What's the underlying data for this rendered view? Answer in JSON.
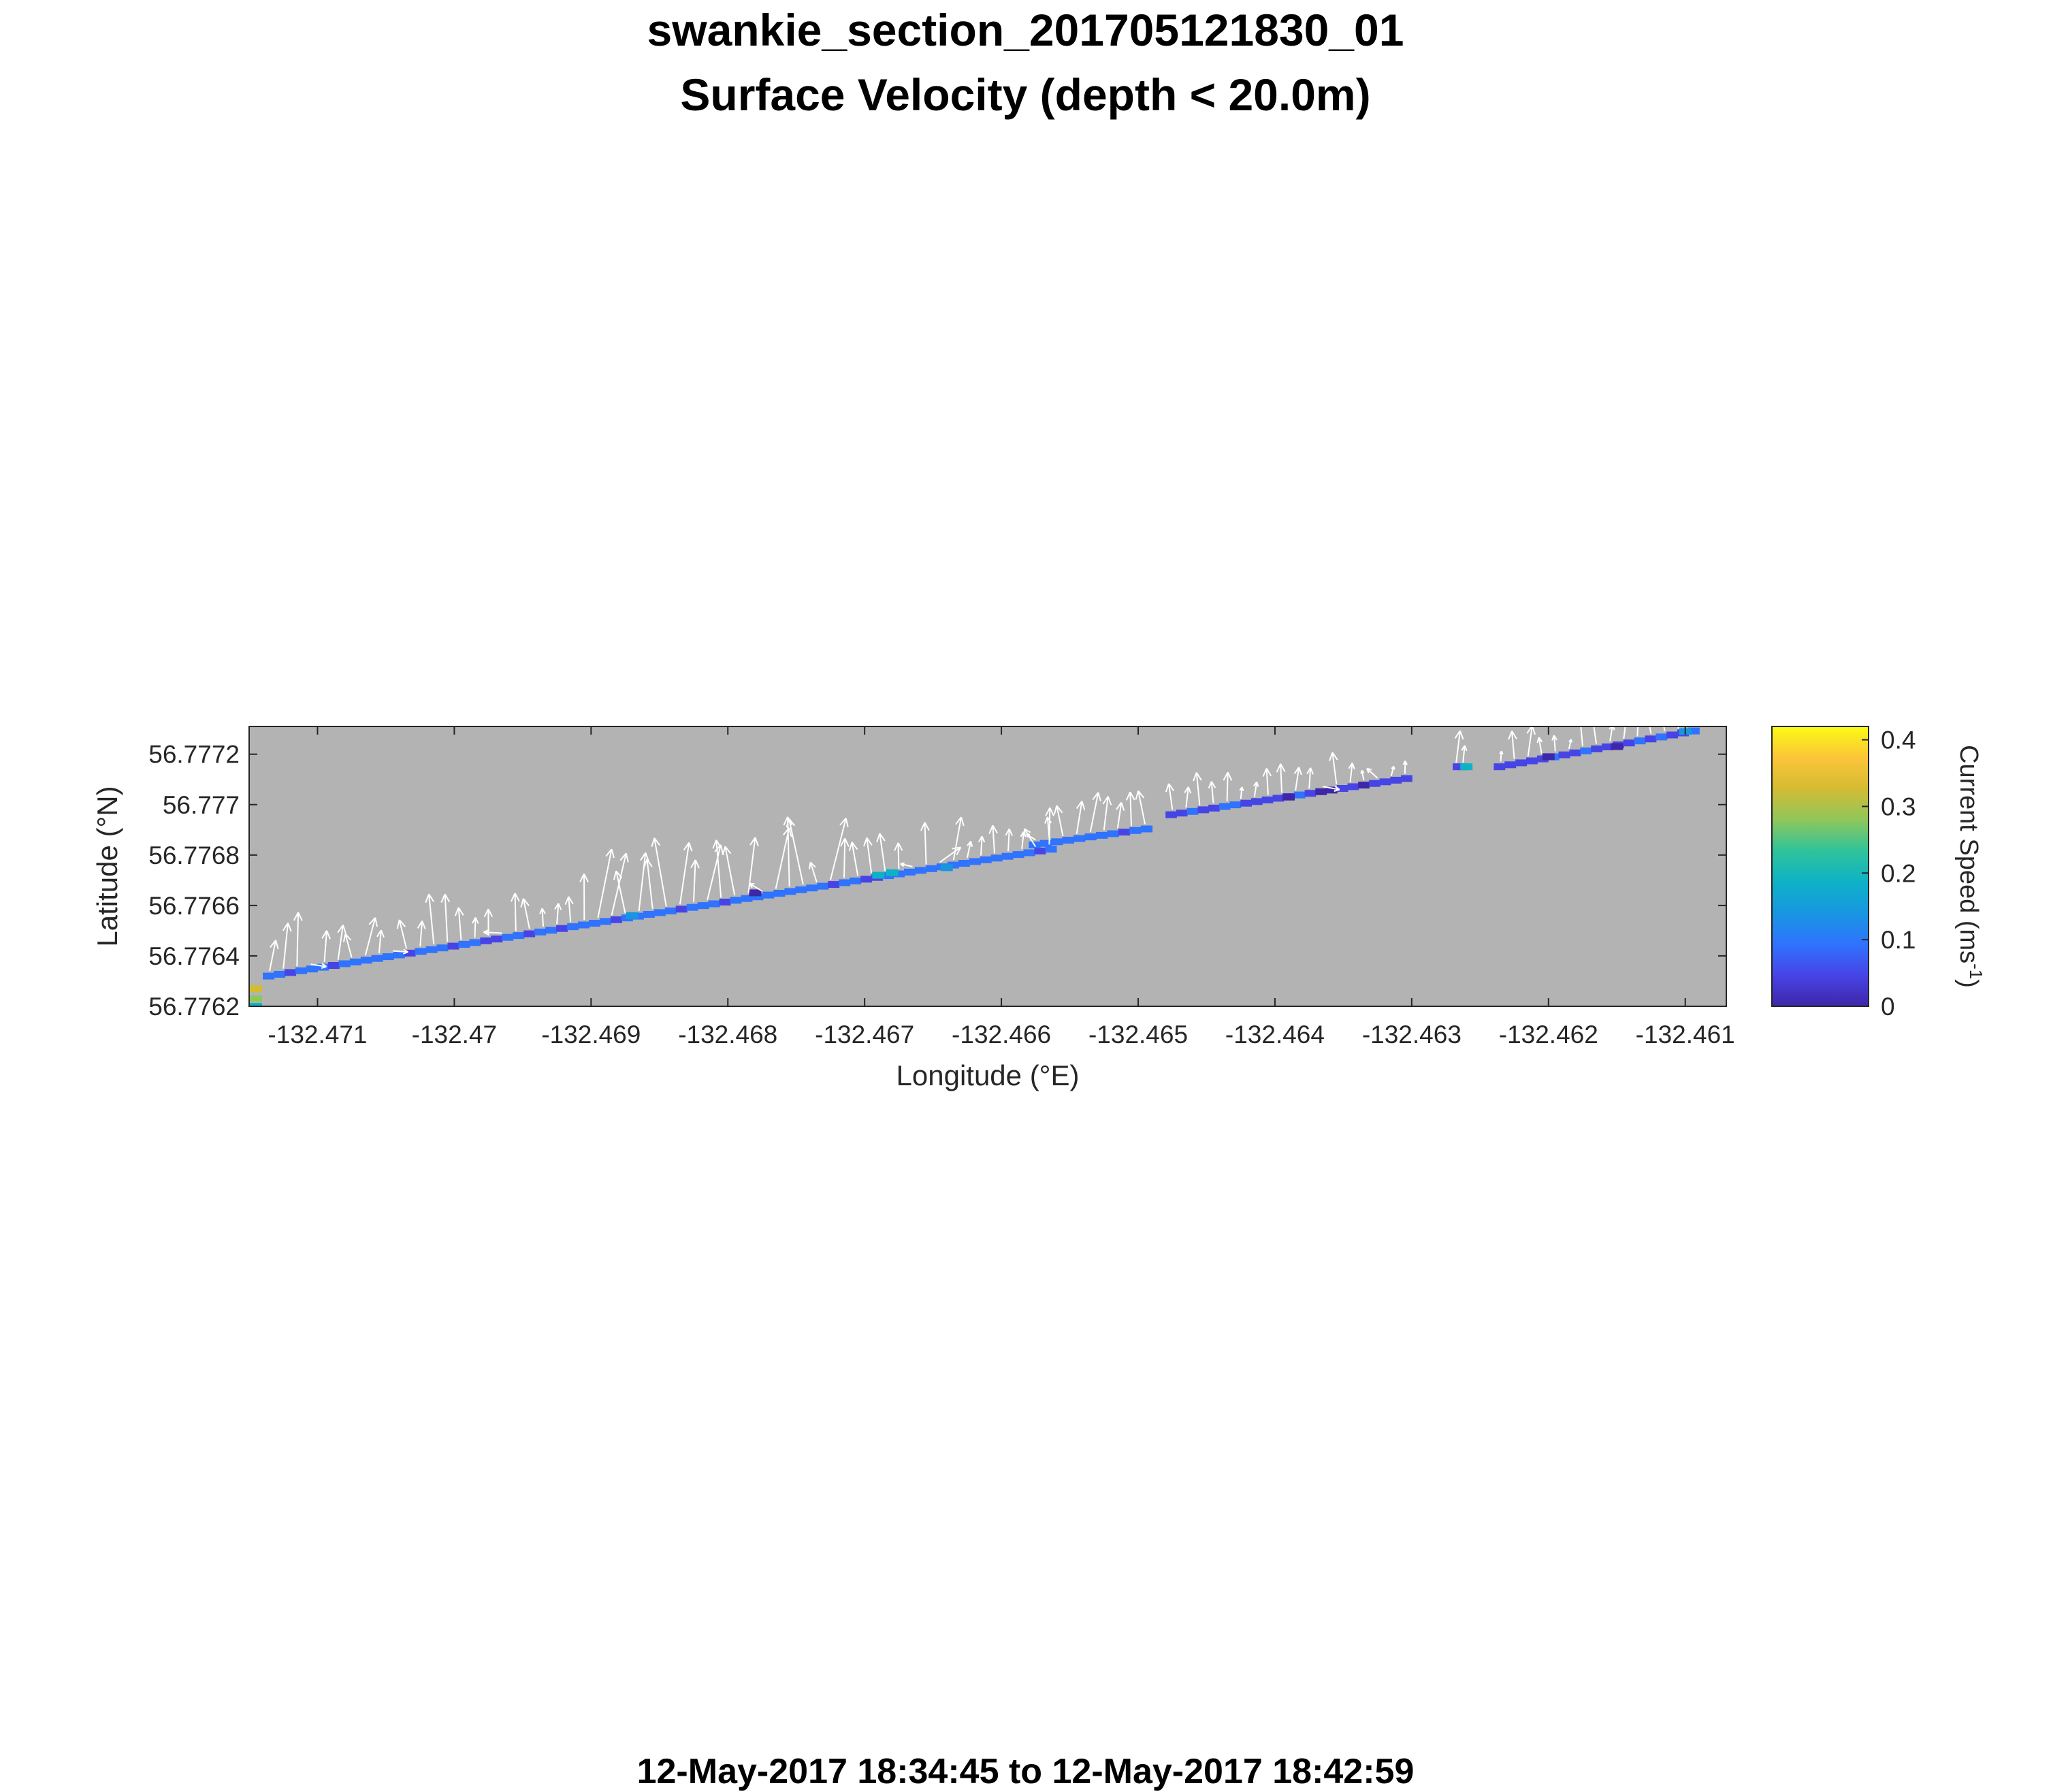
{
  "title": "swankie_section_201705121830_01",
  "subtitle": "Surface Velocity (depth < 20.0m)",
  "footer": "12-May-2017 18:34:45 to 12-May-2017 18:42:59",
  "colors": {
    "axes_background": "#b3b3b3",
    "arrow": "#ffffff",
    "colormap": [
      "#3e26a8",
      "#4744e6",
      "#2f73fe",
      "#1896e0",
      "#0eb2c6",
      "#2fc39a",
      "#8fc75b",
      "#d5bb33",
      "#fcc538",
      "#f9fb15"
    ]
  },
  "chart_data": {
    "type": "quiver",
    "xlabel": "Longitude (°E)",
    "ylabel": "Latitude (°N)",
    "xlim": [
      -132.4715,
      -132.4607
    ],
    "ylim": [
      56.7762,
      56.77731
    ],
    "xticks": [
      -132.471,
      -132.47,
      -132.469,
      -132.468,
      -132.467,
      -132.466,
      -132.465,
      -132.464,
      -132.463,
      -132.462,
      -132.461
    ],
    "xtick_labels": [
      "-132.471",
      "-132.47",
      "-132.469",
      "-132.468",
      "-132.467",
      "-132.466",
      "-132.465",
      "-132.464",
      "-132.463",
      "-132.462",
      "-132.461"
    ],
    "yticks": [
      56.7762,
      56.7764,
      56.7766,
      56.7768,
      56.777,
      56.7772
    ],
    "ytick_labels": [
      "56.7762",
      "56.7764",
      "56.7766",
      "56.7768",
      "56.777",
      "56.7772"
    ],
    "colorbar": {
      "label": "Current Speed (ms",
      "label_exponent": "-1",
      "label_close": ")",
      "range": [
        0,
        0.42
      ],
      "ticks": [
        0,
        0.1,
        0.2,
        0.3,
        0.4
      ],
      "tick_labels": [
        "0",
        "0.1",
        "0.2",
        "0.3",
        "0.4"
      ]
    },
    "track_segments": [
      {
        "lon": [
          -132.4714,
          -132.4656
        ],
        "lat": [
          56.77632,
          56.77683
        ]
      },
      {
        "lon": [
          -132.4658,
          -132.4649
        ],
        "lat": [
          56.77684,
          56.77691
        ]
      },
      {
        "lon": [
          -132.4648,
          -132.463
        ],
        "lat": [
          56.77696,
          56.77711
        ]
      },
      {
        "lon": [
          -132.4627,
          -132.4626
        ],
        "lat": [
          56.77715,
          56.77715
        ]
      },
      {
        "lon": [
          -132.4624,
          -132.4609
        ],
        "lat": [
          56.77715,
          56.7773
        ]
      }
    ],
    "speed_points": [
      {
        "lon": -132.47145,
        "lat": 56.77627,
        "speed": 0.34
      },
      {
        "lon": -132.47145,
        "lat": 56.77623,
        "speed": 0.28
      },
      {
        "lon": -132.47145,
        "lat": 56.7762,
        "speed": 0.2
      },
      {
        "lon": -132.4678,
        "lat": 56.77665,
        "speed": 0.01
      },
      {
        "lon": -132.4668,
        "lat": 56.77673,
        "speed": 0.18
      },
      {
        "lon": -132.4664,
        "lat": 56.77675,
        "speed": 0.16
      },
      {
        "lon": -132.4669,
        "lat": 56.77672,
        "speed": 0.17
      },
      {
        "lon": -132.4687,
        "lat": 56.77656,
        "speed": 0.15
      },
      {
        "lon": -132.4626,
        "lat": 56.77715,
        "speed": 0.18
      },
      {
        "lon": -132.4639,
        "lat": 56.77703,
        "speed": 0.02
      },
      {
        "lon": -132.462,
        "lat": 56.77719,
        "speed": 0.01
      },
      {
        "lon": -132.4615,
        "lat": 56.77723,
        "speed": 0.02
      },
      {
        "lon": -132.461,
        "lat": 56.77729,
        "speed": 0.12
      }
    ]
  }
}
